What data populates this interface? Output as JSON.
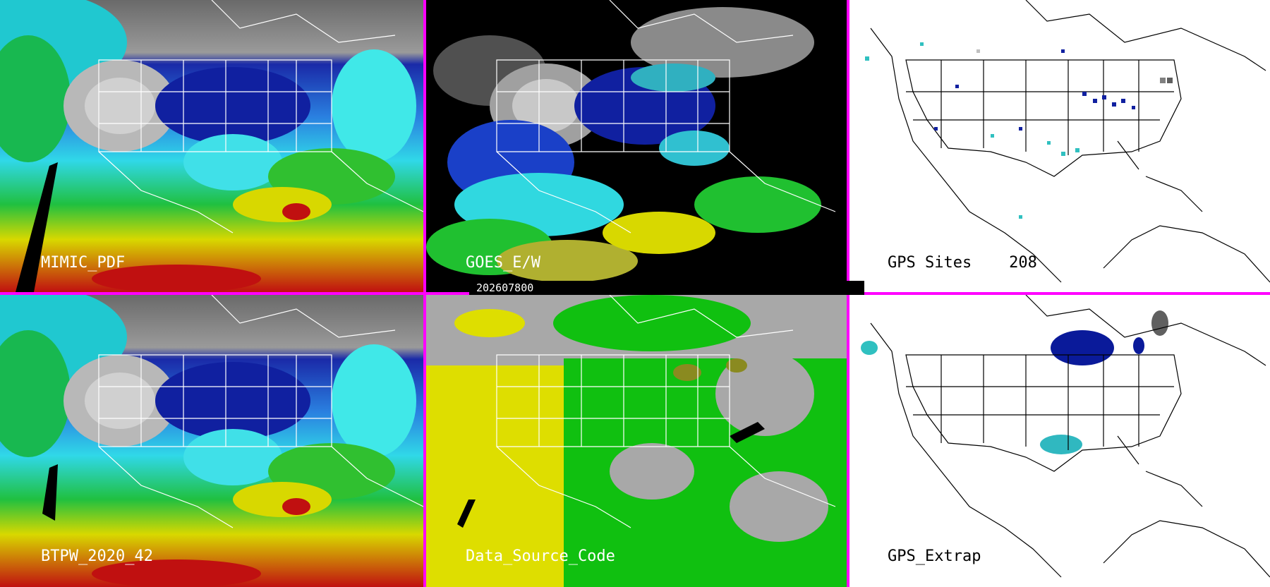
{
  "panels": [
    {
      "label": "MIMIC_PDF"
    },
    {
      "label": "GOES_E/W"
    },
    {
      "label": "GPS Sites    208"
    },
    {
      "label": "BTPW_2020_42"
    },
    {
      "label": "Data_Source_Code"
    },
    {
      "label": "GPS_Extrap"
    }
  ],
  "timestamp": "202607800",
  "colors": {
    "divider": "#ff00ff",
    "deep_blue": "#0a1a9a",
    "blue": "#2050d8",
    "cyan": "#30e0e8",
    "green": "#20c020",
    "yellow": "#e0e000",
    "red": "#c00000",
    "gray_source": "#a8a8a8",
    "yellow_source": "#dede00",
    "green_source": "#10c010"
  }
}
